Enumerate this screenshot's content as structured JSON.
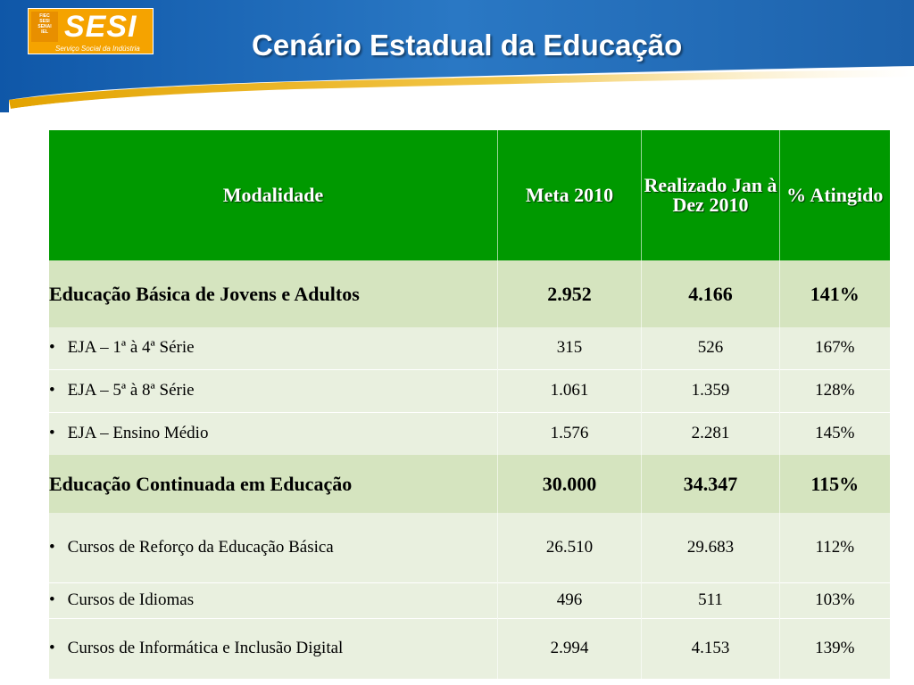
{
  "header": {
    "title": "Cenário Estadual da Educação",
    "logo": {
      "word": "SESI",
      "subtitle": "Serviço Social da Indústria",
      "small_lines": [
        "FIEC",
        "SESI",
        "SENAI",
        "IEL"
      ]
    }
  },
  "table": {
    "columns": [
      "Modalidade",
      "Meta 2010",
      "Realizado Jan à Dez 2010",
      "% Atingido"
    ],
    "groups": [
      {
        "name": "Educação Básica de Jovens e Adultos",
        "meta": "2.952",
        "realizado": "4.166",
        "percent": "141%",
        "items": [
          {
            "name": "EJA – 1ª à 4ª Série",
            "meta": "315",
            "realizado": "526",
            "percent": "167%"
          },
          {
            "name": "EJA – 5ª à 8ª Série",
            "meta": "1.061",
            "realizado": "1.359",
            "percent": "128%"
          },
          {
            "name": "EJA – Ensino Médio",
            "meta": "1.576",
            "realizado": "2.281",
            "percent": "145%"
          }
        ]
      },
      {
        "name": "Educação Continuada em Educação",
        "meta": "30.000",
        "realizado": "34.347",
        "percent": "115%",
        "items": [
          {
            "name": "Cursos de Reforço da Educação Básica",
            "meta": "26.510",
            "realizado": "29.683",
            "percent": "112%"
          },
          {
            "name": "Cursos de Idiomas",
            "meta": "496",
            "realizado": "511",
            "percent": "103%"
          },
          {
            "name": "Cursos de Informática e Inclusão Digital",
            "meta": "2.994",
            "realizado": "4.153",
            "percent": "139%"
          }
        ]
      }
    ]
  },
  "colors": {
    "header_green": "#009900",
    "group_row": "#d5e4bf",
    "item_row": "#e9f0df",
    "banner_blue": "#1a5fa8",
    "logo_orange": "#f5a300"
  }
}
